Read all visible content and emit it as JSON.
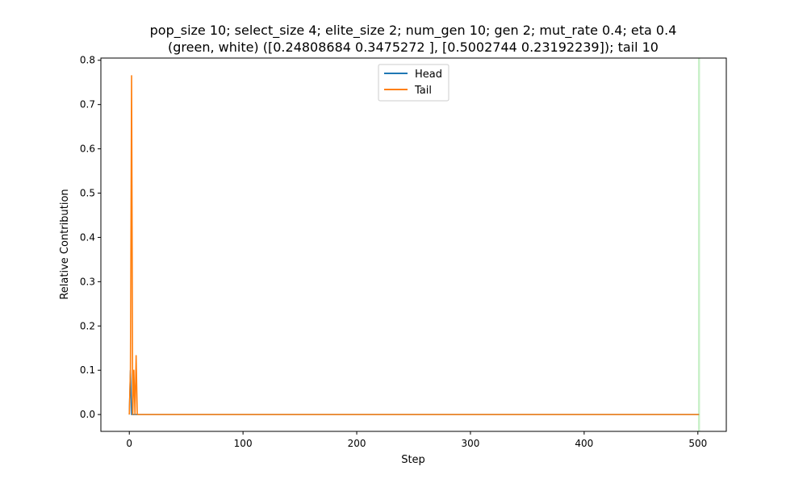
{
  "chart_data": {
    "type": "line",
    "title_line1": "pop_size 10; select_size 4; elite_size 2; num_gen 10; gen 2; mut_rate 0.4; eta 0.4",
    "title_line2": "(green, white) ([0.24808684 0.3475272 ], [0.5002744  0.23192239]); tail 10",
    "xlabel": "Step",
    "ylabel": "Relative Contribution",
    "xlim": [
      -25,
      525
    ],
    "ylim": [
      -0.038,
      0.805
    ],
    "x_ticks": [
      0,
      100,
      200,
      300,
      400,
      500
    ],
    "y_ticks": [
      0.0,
      0.1,
      0.2,
      0.3,
      0.4,
      0.5,
      0.6,
      0.7,
      0.8
    ],
    "x_tick_labels": [
      "0",
      "100",
      "200",
      "300",
      "400",
      "500"
    ],
    "y_tick_labels": [
      "0.0",
      "0.1",
      "0.2",
      "0.3",
      "0.4",
      "0.5",
      "0.6",
      "0.7",
      "0.8"
    ],
    "grid": false,
    "legend_position": "top-center",
    "vertical_marker": {
      "x": 501,
      "color": "#c8f0c8"
    },
    "series": [
      {
        "name": "Head",
        "color": "#1f77b4",
        "x": [
          0,
          1,
          2,
          3,
          4,
          5,
          6,
          10,
          50,
          100,
          200,
          300,
          400,
          500,
          501
        ],
        "y": [
          0.0,
          0.1,
          0.0,
          0.0,
          0.0,
          0.0,
          0.0,
          0.0,
          0.0,
          0.0,
          0.0,
          0.0,
          0.0,
          0.0,
          0.0
        ]
      },
      {
        "name": "Tail",
        "color": "#ff7f0e",
        "x": [
          0,
          1,
          2,
          3,
          4,
          5,
          6,
          7,
          10,
          50,
          100,
          200,
          300,
          400,
          500,
          501
        ],
        "y": [
          0.0,
          0.1,
          0.765,
          0.0,
          0.1,
          0.0,
          0.133,
          0.0,
          0.0,
          0.0,
          0.0,
          0.0,
          0.0,
          0.0,
          0.0,
          0.0
        ]
      }
    ]
  }
}
